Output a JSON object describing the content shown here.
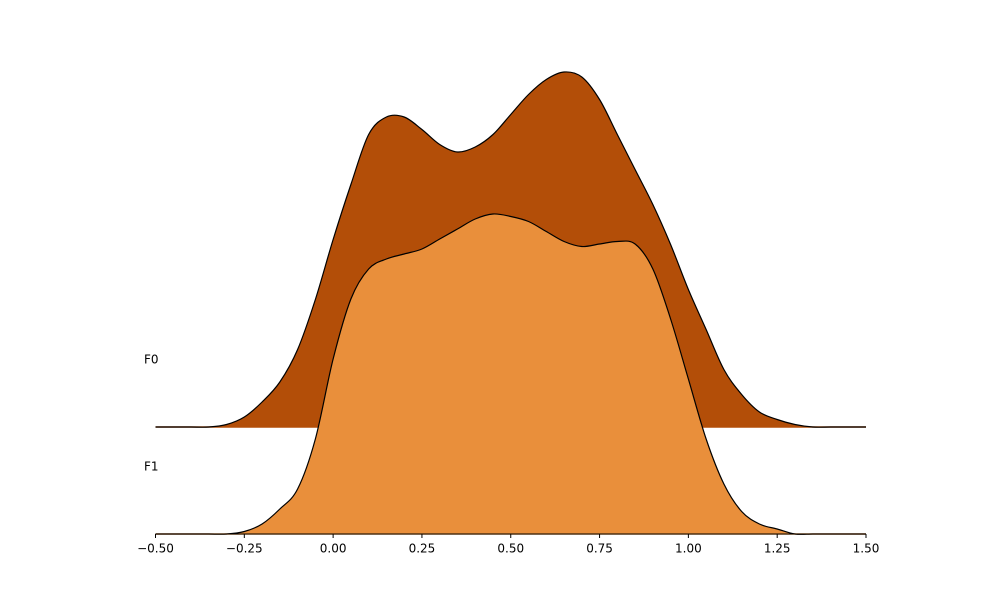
{
  "chart_data": {
    "type": "ridgeline",
    "x": [
      -0.5,
      -0.45,
      -0.4,
      -0.35,
      -0.3,
      -0.25,
      -0.2,
      -0.15,
      -0.1,
      -0.05,
      0,
      0.05,
      0.1,
      0.15,
      0.2,
      0.25,
      0.3,
      0.35,
      0.4,
      0.45,
      0.5,
      0.55,
      0.6,
      0.65,
      0.7,
      0.75,
      0.8,
      0.85,
      0.9,
      0.95,
      1.0,
      1.05,
      1.1,
      1.15,
      1.2,
      1.25,
      1.3,
      1.35,
      1.4,
      1.45,
      1.5
    ],
    "series": [
      {
        "name": "F0",
        "color": "#b34e08",
        "values": [
          0,
          0,
          0,
          0,
          0.01,
          0.04,
          0.1,
          0.18,
          0.31,
          0.51,
          0.75,
          0.97,
          1.17,
          1.24,
          1.24,
          1.19,
          1.13,
          1.1,
          1.12,
          1.17,
          1.25,
          1.33,
          1.39,
          1.42,
          1.4,
          1.31,
          1.17,
          1.03,
          0.89,
          0.73,
          0.55,
          0.39,
          0.23,
          0.13,
          0.06,
          0.03,
          0.01,
          0,
          0,
          0,
          0
        ]
      },
      {
        "name": "F1",
        "color": "#e98f3b",
        "values": [
          0,
          0,
          0,
          0,
          0,
          0.01,
          0.04,
          0.1,
          0.18,
          0.38,
          0.7,
          0.94,
          1.06,
          1.1,
          1.12,
          1.14,
          1.18,
          1.22,
          1.26,
          1.28,
          1.27,
          1.25,
          1.21,
          1.17,
          1.15,
          1.16,
          1.17,
          1.16,
          1.06,
          0.86,
          0.62,
          0.38,
          0.2,
          0.09,
          0.04,
          0.02,
          0,
          0,
          0,
          0,
          0
        ]
      }
    ],
    "xlim": [
      -0.5,
      1.5
    ],
    "xticks": [
      {
        "value": -0.5,
        "label": "−0.50"
      },
      {
        "value": -0.25,
        "label": "−0.25"
      },
      {
        "value": 0,
        "label": "0.00"
      },
      {
        "value": 0.25,
        "label": "0.25"
      },
      {
        "value": 0.5,
        "label": "0.50"
      },
      {
        "value": 0.75,
        "label": "0.75"
      },
      {
        "value": 1.0,
        "label": "1.00"
      },
      {
        "value": 1.25,
        "label": "1.25"
      },
      {
        "value": 1.5,
        "label": "1.50"
      }
    ]
  }
}
